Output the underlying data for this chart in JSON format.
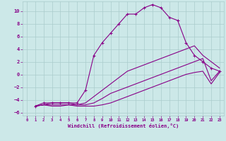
{
  "xlabel": "Windchill (Refroidissement éolien,°C)",
  "bg_color": "#cce8e8",
  "grid_color": "#aacccc",
  "line_color": "#880088",
  "xlim": [
    -0.5,
    23.5
  ],
  "ylim": [
    -6.5,
    11.5
  ],
  "xticks": [
    0,
    1,
    2,
    3,
    4,
    5,
    6,
    7,
    8,
    9,
    10,
    11,
    12,
    13,
    14,
    15,
    16,
    17,
    18,
    19,
    20,
    21,
    22,
    23
  ],
  "yticks": [
    -6,
    -4,
    -2,
    0,
    2,
    4,
    6,
    8,
    10
  ],
  "lines": [
    {
      "x": [
        1,
        2,
        3,
        4,
        5,
        6,
        7,
        8,
        9,
        10,
        11,
        12,
        13,
        14,
        15,
        16,
        17,
        18,
        19,
        20,
        21,
        22,
        23
      ],
      "y": [
        -5.0,
        -4.5,
        -4.5,
        -4.5,
        -4.5,
        -4.5,
        -2.5,
        3.0,
        5.0,
        6.5,
        8.0,
        9.5,
        9.5,
        10.5,
        11.0,
        10.5,
        9.0,
        8.5,
        5.0,
        3.0,
        2.0,
        1.0,
        0.5
      ],
      "marker": "+"
    },
    {
      "x": [
        1,
        2,
        3,
        4,
        5,
        6,
        7,
        8,
        9,
        10,
        11,
        12,
        13,
        14,
        15,
        16,
        17,
        18,
        19,
        20,
        21,
        22,
        23
      ],
      "y": [
        -5.0,
        -4.8,
        -4.5,
        -4.5,
        -4.5,
        -4.8,
        -4.5,
        -3.5,
        -2.5,
        -1.5,
        -0.5,
        0.5,
        1.0,
        1.5,
        2.0,
        2.5,
        3.0,
        3.5,
        4.0,
        4.5,
        3.0,
        2.0,
        1.0
      ],
      "marker": null
    },
    {
      "x": [
        1,
        2,
        3,
        4,
        5,
        6,
        7,
        8,
        9,
        10,
        11,
        12,
        13,
        14,
        15,
        16,
        17,
        18,
        19,
        20,
        21,
        22,
        23
      ],
      "y": [
        -5.0,
        -4.8,
        -4.8,
        -4.8,
        -4.8,
        -4.8,
        -4.8,
        -4.5,
        -3.8,
        -3.0,
        -2.5,
        -2.0,
        -1.5,
        -1.0,
        -0.5,
        0.0,
        0.5,
        1.0,
        1.5,
        2.0,
        2.5,
        -1.0,
        0.5
      ],
      "marker": null
    },
    {
      "x": [
        1,
        2,
        3,
        4,
        5,
        6,
        7,
        8,
        9,
        10,
        11,
        12,
        13,
        14,
        15,
        16,
        17,
        18,
        19,
        20,
        21,
        22,
        23
      ],
      "y": [
        -5.0,
        -4.8,
        -5.0,
        -5.0,
        -4.8,
        -5.0,
        -5.0,
        -5.0,
        -4.8,
        -4.5,
        -4.0,
        -3.5,
        -3.0,
        -2.5,
        -2.0,
        -1.5,
        -1.0,
        -0.5,
        0.0,
        0.3,
        0.5,
        -1.5,
        0.3
      ],
      "marker": null
    }
  ]
}
